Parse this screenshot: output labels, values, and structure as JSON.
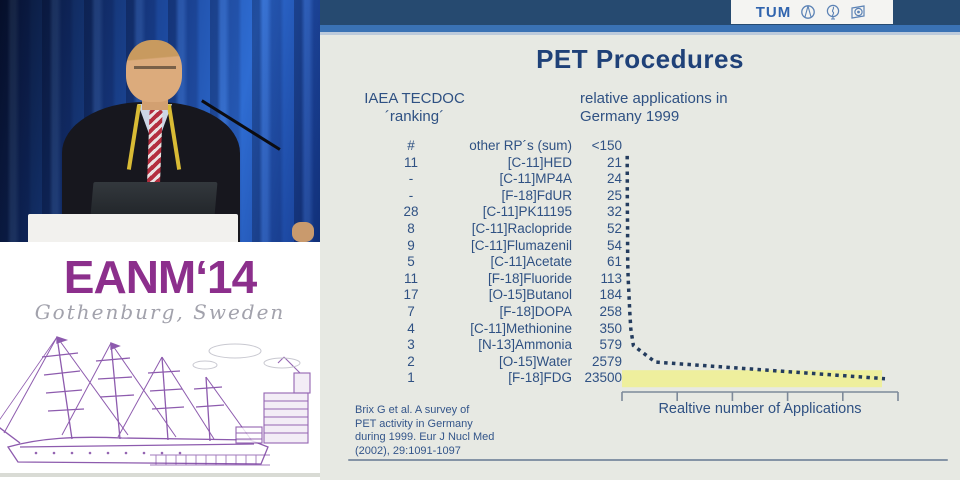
{
  "eanm": {
    "title": "EANM‘14",
    "subtitle": "Gothenburg, Sweden"
  },
  "slide": {
    "logo": {
      "tum_label": "TUM"
    },
    "title": "PET Procedures",
    "left_header_line1": "IAEA TECDOC",
    "left_header_line2": "´ranking´",
    "right_header_line1": "relative applications in",
    "right_header_line2": "Germany 1999",
    "table": {
      "rows": [
        {
          "rank": "#",
          "name": "other RP´s (sum)",
          "value": "<150"
        },
        {
          "rank": "11",
          "name": "[C-11]HED",
          "value": "21"
        },
        {
          "rank": "-",
          "name": "[C-11]MP4A",
          "value": "24"
        },
        {
          "rank": "-",
          "name": "[F-18]FdUR",
          "value": "25"
        },
        {
          "rank": "28",
          "name": "[C-11]PK11195",
          "value": "32"
        },
        {
          "rank": "8",
          "name": "[C-11]Raclopride",
          "value": "52"
        },
        {
          "rank": "9",
          "name": "[C-11]Flumazenil",
          "value": "54"
        },
        {
          "rank": "5",
          "name": "[C-11]Acetate",
          "value": "61"
        },
        {
          "rank": "11",
          "name": "[F-18]Fluoride",
          "value": "113"
        },
        {
          "rank": "17",
          "name": "[O-15]Butanol",
          "value": "184"
        },
        {
          "rank": "7",
          "name": "[F-18]DOPA",
          "value": "258"
        },
        {
          "rank": "4",
          "name": "[C-11]Methionine",
          "value": "350"
        },
        {
          "rank": "3",
          "name": "[N-13]Ammonia",
          "value": "579"
        },
        {
          "rank": "2",
          "name": "[O-15]Water",
          "value": "2579"
        },
        {
          "rank": "1",
          "name": "[F-18]FDG",
          "value": "23500"
        }
      ]
    },
    "axis_label": "Realtive number of Applications",
    "citation_line1": "Brix G et al. A survey of",
    "citation_line2": "PET activity in Germany",
    "citation_line3": "during 1999. Eur J Nucl Med",
    "citation_line4": "(2002), 29:1091-1097"
  },
  "chart_data": {
    "type": "scatter",
    "title": "PET Procedures",
    "subtitle": "relative applications in Germany 1999",
    "xlabel": "Realtive number of Applications",
    "categories": [
      "other RP´s (sum)",
      "[C-11]HED",
      "[C-11]MP4A",
      "[F-18]FdUR",
      "[C-11]PK11195",
      "[C-11]Raclopride",
      "[C-11]Flumazenil",
      "[C-11]Acetate",
      "[F-18]Fluoride",
      "[O-15]Butanol",
      "[F-18]DOPA",
      "[C-11]Methionine",
      "[N-13]Ammonia",
      "[O-15]Water",
      "[F-18]FDG"
    ],
    "values": [
      "<150",
      21,
      24,
      25,
      32,
      52,
      54,
      61,
      113,
      184,
      258,
      350,
      579,
      2579,
      23500
    ],
    "iaea_tecdoc_ranking": [
      "#",
      "11",
      "-",
      "-",
      "28",
      "8",
      "9",
      "5",
      "11",
      "17",
      "7",
      "4",
      "3",
      "2",
      "1"
    ],
    "x_range": [
      0,
      23500
    ],
    "x_tick_count": 6,
    "tick_labels_shown": false,
    "style": "dotted decay curve; one dot series, square dots",
    "dot_color": "#243c5e",
    "highlight_bar": {
      "category": "[F-18]FDG",
      "color": "#eef095"
    }
  },
  "colors": {
    "header_navy": "#264a70",
    "header_stripe": "#3a72b4",
    "slide_bg": "#e7e9e3",
    "text_navy": "#2f5183",
    "eanm_purple": "#8c2f8c",
    "ship_purple": "#7a3fa0",
    "highlight_yellow": "#eef095"
  }
}
